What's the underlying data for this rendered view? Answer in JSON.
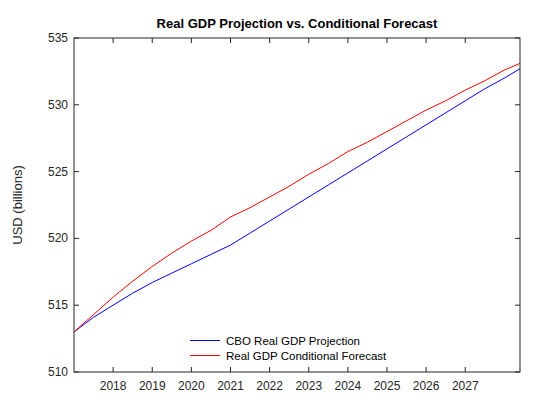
{
  "chart_data": {
    "type": "line",
    "title": "Real GDP Projection vs. Conditional Forecast",
    "y_label": "USD (billions)",
    "x": [
      2017.0,
      2017.5,
      2018.0,
      2018.5,
      2019.0,
      2019.5,
      2020.0,
      2020.5,
      2021.0,
      2021.5,
      2022.0,
      2022.5,
      2023.0,
      2023.5,
      2024.0,
      2024.5,
      2025.0,
      2025.5,
      2026.0,
      2026.5,
      2027.0,
      2027.5,
      2028.0,
      2028.4
    ],
    "series": [
      {
        "name": "CBO Real GDP Projection",
        "color": "#0000ff",
        "values": [
          513.0,
          514.1,
          515.0,
          515.9,
          516.7,
          517.4,
          518.1,
          518.8,
          519.5,
          520.4,
          521.3,
          522.2,
          523.1,
          524.0,
          524.9,
          525.8,
          526.7,
          527.6,
          528.5,
          529.4,
          530.3,
          531.2,
          532.0,
          532.7
        ]
      },
      {
        "name": "Real GDP Conditional Forecast",
        "color": "#ff0000",
        "values": [
          513.0,
          514.3,
          515.6,
          516.8,
          517.9,
          518.9,
          519.8,
          520.6,
          521.6,
          522.3,
          523.1,
          523.9,
          524.8,
          525.6,
          526.5,
          527.2,
          528.0,
          528.8,
          529.6,
          530.3,
          531.1,
          531.8,
          532.6,
          533.1
        ]
      }
    ],
    "xlim": [
      2017.0,
      2028.4
    ],
    "xticks": [
      2018,
      2019,
      2020,
      2021,
      2022,
      2023,
      2024,
      2025,
      2026,
      2027
    ],
    "ylim": [
      510,
      535
    ],
    "yticks": [
      510,
      515,
      520,
      525,
      530,
      535
    ],
    "grid": false,
    "legend": "south"
  }
}
